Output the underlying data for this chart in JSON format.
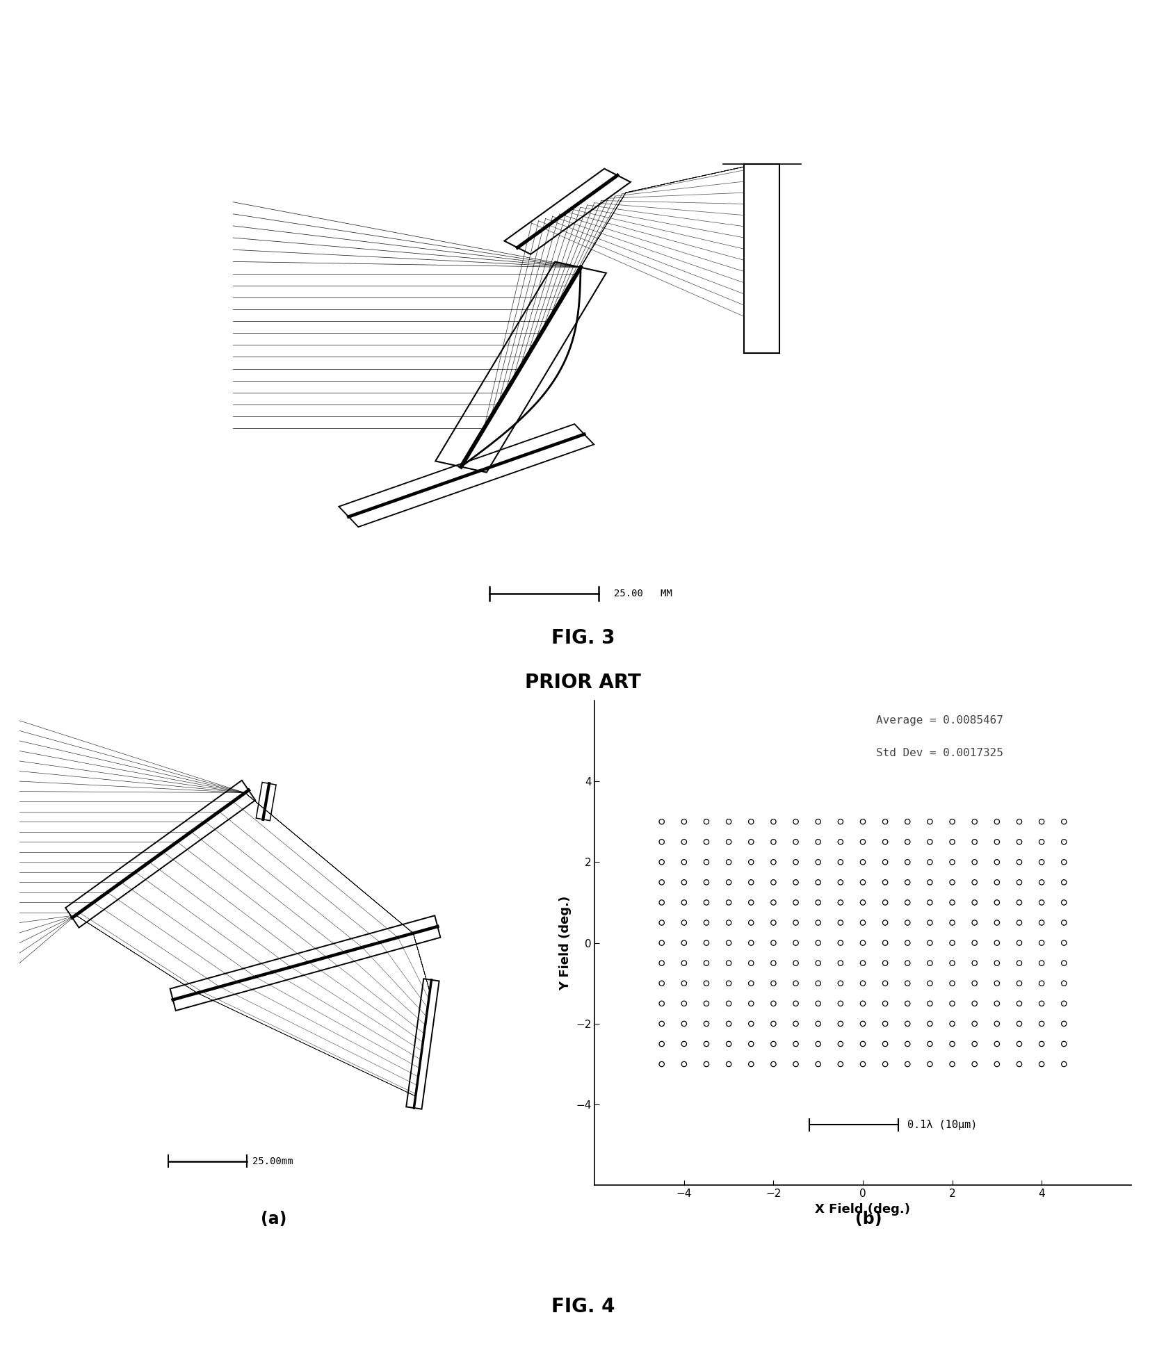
{
  "fig3_title": "FIG. 3",
  "fig3_subtitle": "PRIOR ART",
  "fig4_title": "FIG. 4",
  "fig4a_label": "(a)",
  "fig4b_label": "(b)",
  "scale_bar_top": "25.00   MM",
  "scale_bar_bottom": "25.00mm",
  "avg_text": "Average = 0.0085467",
  "std_text": "Std Dev = 0.0017325",
  "wavelength_text": "0.1λ (10μm)",
  "xlabel": "X Field (deg.)",
  "ylabel": "Y Field (deg.)",
  "xlim": [
    -6,
    6
  ],
  "ylim": [
    -6,
    6
  ],
  "xticks": [
    -4,
    -2,
    0,
    2,
    4
  ],
  "yticks": [
    -4,
    -2,
    0,
    2,
    4
  ],
  "dot_xmin": -4.5,
  "dot_xmax": 4.5,
  "dot_ymin": -3.0,
  "dot_ymax": 3.0,
  "dot_nx": 19,
  "dot_ny": 13,
  "background_color": "#ffffff",
  "text_color": "#000000"
}
